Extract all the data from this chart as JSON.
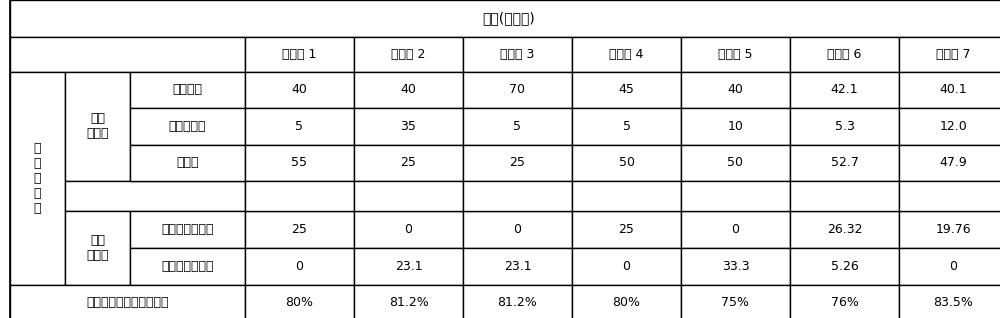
{
  "title": "配方(质量份)",
  "col_headers": [
    "实施例 1",
    "实施例 2",
    "实施例 3",
    "实施例 4",
    "实施例 5",
    "实施例 6",
    "实施例 7"
  ],
  "row_label_1": "复\n合\n阻\n燃\n剂",
  "row_label_2a": "无机\n组合物",
  "row_label_2b": "有机\n磷酸酯",
  "inorganic_rows": [
    {
      "name": "聚磷酸铵",
      "values": [
        "40",
        "40",
        "70",
        "45",
        "40",
        "42.1",
        "40.1"
      ]
    },
    {
      "name": "可膨胀石墨",
      "values": [
        "5",
        "35",
        "5",
        "5",
        "10",
        "5.3",
        "12.0"
      ]
    },
    {
      "name": "膨润土",
      "values": [
        "55",
        "25",
        "25",
        "50",
        "50",
        "52.7",
        "47.9"
      ]
    }
  ],
  "organic_rows": [
    {
      "name": "甲基磷酸二甲酯",
      "values": [
        "25",
        "0",
        "0",
        "25",
        "0",
        "26.32",
        "19.76"
      ]
    },
    {
      "name": "乙基磷酸二乙酯",
      "values": [
        "0",
        "23.1",
        "23.1",
        "0",
        "33.3",
        "5.26",
        "0"
      ]
    }
  ],
  "bottom_row": {
    "name": "复合阻燃剂中无机物比例",
    "values": [
      "80%",
      "81.2%",
      "81.2%",
      "80%",
      "75%",
      "76%",
      "83.5%"
    ]
  },
  "bg_color": "#ffffff",
  "text_color": "#000000",
  "border_color": "#000000",
  "font_size": 9,
  "title_font_size": 10
}
